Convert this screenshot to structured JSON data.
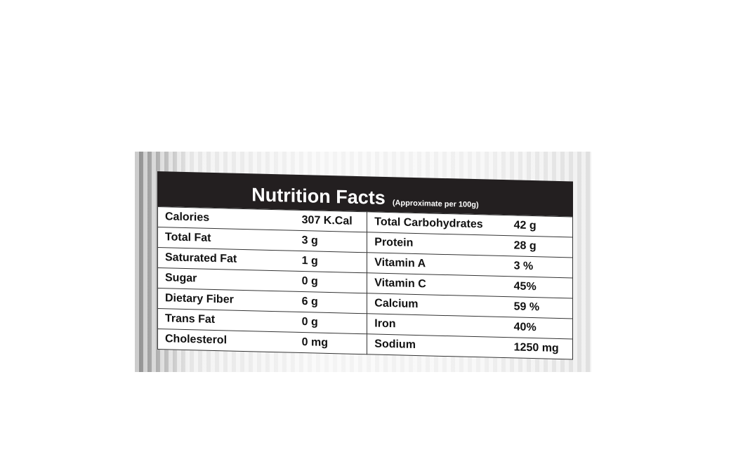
{
  "header": {
    "title": "Nutrition Facts",
    "subtitle": "(Approximate per 100g)"
  },
  "table": {
    "rows": [
      [
        "Calories",
        "307 K.Cal",
        "Total Carbohydrates",
        "42 g"
      ],
      [
        "Total Fat",
        "3 g",
        "Protein",
        "28 g"
      ],
      [
        "Saturated Fat",
        "1 g",
        "Vitamin A",
        "3 %"
      ],
      [
        "Sugar",
        "0 g",
        "Vitamin C",
        "45%"
      ],
      [
        "Dietary Fiber",
        "6 g",
        "Calcium",
        "59 %"
      ],
      [
        "Trans Fat",
        "0 g",
        "Iron",
        "40%"
      ],
      [
        "Cholesterol",
        "0 mg",
        "Sodium",
        "1250 mg"
      ]
    ]
  }
}
